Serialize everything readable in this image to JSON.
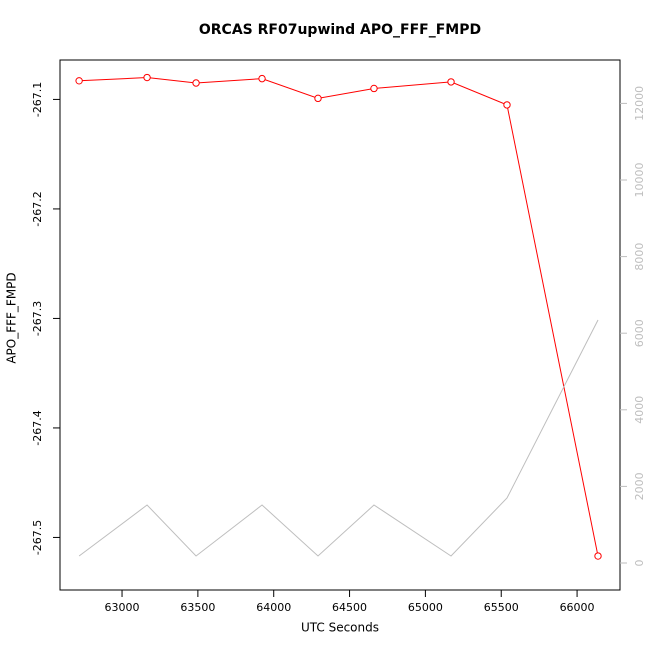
{
  "chart_data": {
    "type": "line",
    "title": "ORCAS RF07upwind APO_FFF_FMPD",
    "xlabel": "UTC Seconds",
    "ylabel": "APO_FFF_FMPD",
    "x": [
      62717,
      63165,
      63488,
      63923,
      64292,
      64661,
      65169,
      65538,
      66138
    ],
    "series": [
      {
        "color": "#ff0000",
        "values": [
          -267.083,
          -267.08,
          -267.085,
          -267.081,
          -267.099,
          -267.09,
          -267.084,
          -267.105,
          -267.517
        ],
        "markers": true
      },
      {
        "color": "#bebebe",
        "axis": "y2",
        "values": [
          183,
          1514,
          183,
          1514,
          183,
          1514,
          183,
          1697,
          6345
        ],
        "markers": false
      }
    ],
    "xlim": [
      62591,
      66283
    ],
    "xticks": [
      63000,
      63500,
      64000,
      64500,
      65000,
      65500,
      66000
    ],
    "ylim": [
      -267.548,
      -267.064
    ],
    "yticks": [
      -267.1,
      -267.2,
      -267.3,
      -267.4,
      -267.5
    ],
    "y2lim": [
      -705,
      13133
    ],
    "y2ticks": [
      0,
      2000,
      4000,
      6000,
      8000,
      10000,
      12000
    ],
    "y2_color": "#bebebe"
  }
}
